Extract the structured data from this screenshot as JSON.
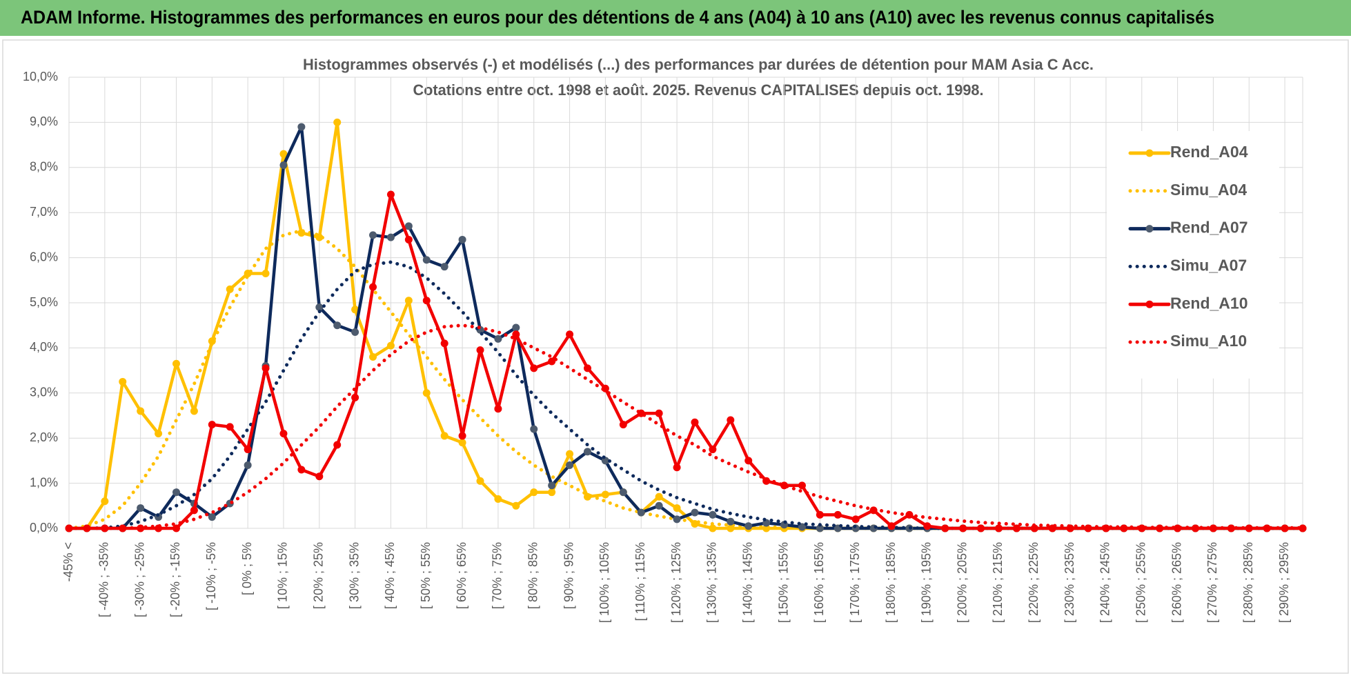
{
  "chart_data": {
    "type": "line",
    "header": "ADAM Informe. Histogrammes des performances en euros pour des détentions de 4 ans (A04) à 10 ans (A10) avec les revenus connus capitalisés",
    "title": "Histogrammes observés (-) et modélisés (...)  des performances par durées de détention pour MAM Asia C Acc.",
    "subtitle": "Cotations entre oct. 1998 et août. 2025. Revenus CAPITALISES depuis oct. 1998.",
    "categories": [
      "-45% <",
      null,
      "[ -40% ; -35%",
      null,
      "[ -30% ; -25%",
      null,
      "[ -20% ; -15%",
      null,
      "[ -10% ; -5%",
      null,
      "[ 0% ; 5%",
      null,
      "[ 10% ; 15%",
      null,
      "[ 20% ; 25%",
      null,
      "[ 30% ; 35%",
      null,
      "[ 40% ; 45%",
      null,
      "[ 50% ; 55%",
      null,
      "[ 60% ; 65%",
      null,
      "[ 70% ; 75%",
      null,
      "[ 80% ; 85%",
      null,
      "[ 90% ; 95%",
      null,
      "[ 100% ; 105%",
      null,
      "[ 110% ; 115%",
      null,
      "[ 120% ; 125%",
      null,
      "[ 130% ; 135%",
      null,
      "[ 140% ; 145%",
      null,
      "[ 150% ; 155%",
      null,
      "[ 160% ; 165%",
      null,
      "[ 170% ; 175%",
      null,
      "[ 180% ; 185%",
      null,
      "[ 190% ; 195%",
      null,
      "[ 200% ; 205%",
      null,
      "[ 210% ; 215%",
      null,
      "[ 220% ; 225%",
      null,
      "[ 230% ; 235%",
      null,
      "[ 240% ; 245%",
      null,
      "[ 250% ; 255%",
      null,
      "[ 260% ; 265%",
      null,
      "[ 270% ; 275%",
      null,
      "[ 280% ; 285%",
      null,
      "[ 290% ; 295%",
      null
    ],
    "ylim": [
      0,
      10
    ],
    "yticks": [
      {
        "value": 0,
        "label": "0,0%"
      },
      {
        "value": 1,
        "label": "1,0%"
      },
      {
        "value": 2,
        "label": "2,0%"
      },
      {
        "value": 3,
        "label": "3,0%"
      },
      {
        "value": 4,
        "label": "4,0%"
      },
      {
        "value": 5,
        "label": "5,0%"
      },
      {
        "value": 6,
        "label": "6,0%"
      },
      {
        "value": 7,
        "label": "7,0%"
      },
      {
        "value": 8,
        "label": "8,0%"
      },
      {
        "value": 9,
        "label": "9,0%"
      },
      {
        "value": 10,
        "label": "10,0%"
      }
    ],
    "grid": true,
    "legend": "right",
    "series": [
      {
        "name": "Rend_A04",
        "color": "#ffc000",
        "style": "solid",
        "values": [
          0,
          0,
          0.6,
          3.25,
          2.6,
          2.1,
          3.65,
          2.6,
          4.15,
          5.3,
          5.65,
          5.65,
          8.3,
          6.55,
          6.45,
          9.0,
          4.85,
          3.8,
          4.05,
          5.05,
          3.0,
          2.05,
          1.9,
          1.05,
          0.65,
          0.5,
          0.8,
          0.8,
          1.65,
          0.7,
          0.75,
          0.8,
          0.35,
          0.7,
          0.45,
          0.1,
          0,
          0,
          0,
          0,
          0,
          0,
          0,
          0,
          0,
          0,
          0,
          0,
          0,
          0,
          0,
          0,
          0,
          0,
          0,
          0,
          0,
          0,
          0,
          0,
          0,
          0,
          0,
          0,
          0,
          0,
          0,
          0,
          0,
          0
        ]
      },
      {
        "name": "Simu_A04",
        "color": "#ffc000",
        "style": "dotted",
        "values": [
          0,
          0.05,
          0.2,
          0.5,
          1.0,
          1.6,
          2.4,
          3.2,
          4.1,
          4.9,
          5.6,
          6.2,
          6.5,
          6.6,
          6.5,
          6.2,
          5.8,
          5.3,
          4.8,
          4.3,
          3.8,
          3.3,
          2.85,
          2.45,
          2.05,
          1.7,
          1.4,
          1.15,
          0.95,
          0.75,
          0.6,
          0.45,
          0.35,
          0.27,
          0.2,
          0.15,
          0.1,
          0.07,
          0.05,
          0.03,
          0.02,
          0.01,
          0,
          0,
          0,
          0,
          0,
          0,
          0,
          0,
          0,
          0,
          0,
          0,
          0,
          0,
          0,
          0,
          0,
          0,
          0,
          0,
          0,
          0,
          0,
          0,
          0,
          0,
          0,
          0
        ]
      },
      {
        "name": "Rend_A07",
        "color": "#0e2a5c",
        "marker": "#4d5b6e",
        "style": "solid",
        "values": [
          0,
          0,
          0,
          0,
          0.45,
          0.25,
          0.8,
          0.55,
          0.25,
          0.55,
          1.4,
          3.6,
          8.05,
          8.9,
          4.9,
          4.5,
          4.35,
          6.5,
          6.45,
          6.7,
          5.95,
          5.8,
          6.4,
          4.4,
          4.2,
          4.45,
          2.2,
          0.95,
          1.4,
          1.7,
          1.5,
          0.8,
          0.35,
          0.5,
          0.2,
          0.35,
          0.3,
          0.15,
          0.05,
          0.12,
          0.08,
          0.03,
          0,
          0,
          0,
          0,
          0,
          0,
          0,
          0,
          0,
          0,
          0,
          0,
          0,
          0,
          0,
          0,
          0,
          0,
          0,
          0,
          0,
          0,
          0,
          0,
          0,
          0,
          0,
          0
        ]
      },
      {
        "name": "Simu_A07",
        "color": "#0e2a5c",
        "style": "dotted",
        "values": [
          0,
          0,
          0.01,
          0.05,
          0.15,
          0.3,
          0.5,
          0.75,
          1.1,
          1.6,
          2.2,
          2.8,
          3.5,
          4.2,
          4.8,
          5.3,
          5.7,
          5.85,
          5.9,
          5.8,
          5.55,
          5.2,
          4.8,
          4.35,
          3.9,
          3.4,
          2.95,
          2.55,
          2.2,
          1.85,
          1.55,
          1.3,
          1.05,
          0.85,
          0.68,
          0.55,
          0.42,
          0.33,
          0.25,
          0.19,
          0.14,
          0.1,
          0.08,
          0.06,
          0.04,
          0.03,
          0.02,
          0.01,
          0,
          0,
          0,
          0,
          0,
          0,
          0,
          0,
          0,
          0,
          0,
          0,
          0,
          0,
          0,
          0,
          0,
          0,
          0,
          0,
          0,
          0
        ]
      },
      {
        "name": "Rend_A10",
        "color": "#f20000",
        "style": "solid",
        "values": [
          0,
          0,
          0,
          0,
          0,
          0,
          0,
          0.4,
          2.3,
          2.25,
          1.75,
          3.55,
          2.1,
          1.3,
          1.15,
          1.85,
          2.9,
          5.35,
          7.4,
          6.4,
          5.05,
          4.1,
          2.05,
          3.95,
          2.65,
          4.3,
          3.55,
          3.7,
          4.3,
          3.55,
          3.1,
          2.3,
          2.55,
          2.55,
          1.35,
          2.35,
          1.75,
          2.4,
          1.5,
          1.05,
          0.95,
          0.95,
          0.3,
          0.3,
          0.2,
          0.4,
          0.05,
          0.3,
          0.05,
          0,
          0,
          0,
          0,
          0,
          0,
          0,
          0,
          0,
          0,
          0,
          0,
          0,
          0,
          0,
          0,
          0,
          0,
          0,
          0,
          0
        ]
      },
      {
        "name": "Simu_A10",
        "color": "#f20000",
        "style": "dotted",
        "values": [
          0,
          0,
          0,
          0,
          0.02,
          0.05,
          0.1,
          0.2,
          0.35,
          0.55,
          0.8,
          1.1,
          1.45,
          1.85,
          2.25,
          2.7,
          3.1,
          3.5,
          3.85,
          4.15,
          4.35,
          4.47,
          4.5,
          4.45,
          4.35,
          4.2,
          4.0,
          3.8,
          3.55,
          3.3,
          3.05,
          2.8,
          2.55,
          2.3,
          2.05,
          1.85,
          1.6,
          1.42,
          1.25,
          1.1,
          0.95,
          0.82,
          0.7,
          0.6,
          0.5,
          0.42,
          0.35,
          0.29,
          0.24,
          0.2,
          0.16,
          0.13,
          0.11,
          0.09,
          0.07,
          0.06,
          0.05,
          0.04,
          0.03,
          0.03,
          0.02,
          0.02,
          0.02,
          0.02,
          0.01,
          0.01,
          0.01,
          0.01,
          0.01,
          0.01
        ]
      }
    ]
  }
}
